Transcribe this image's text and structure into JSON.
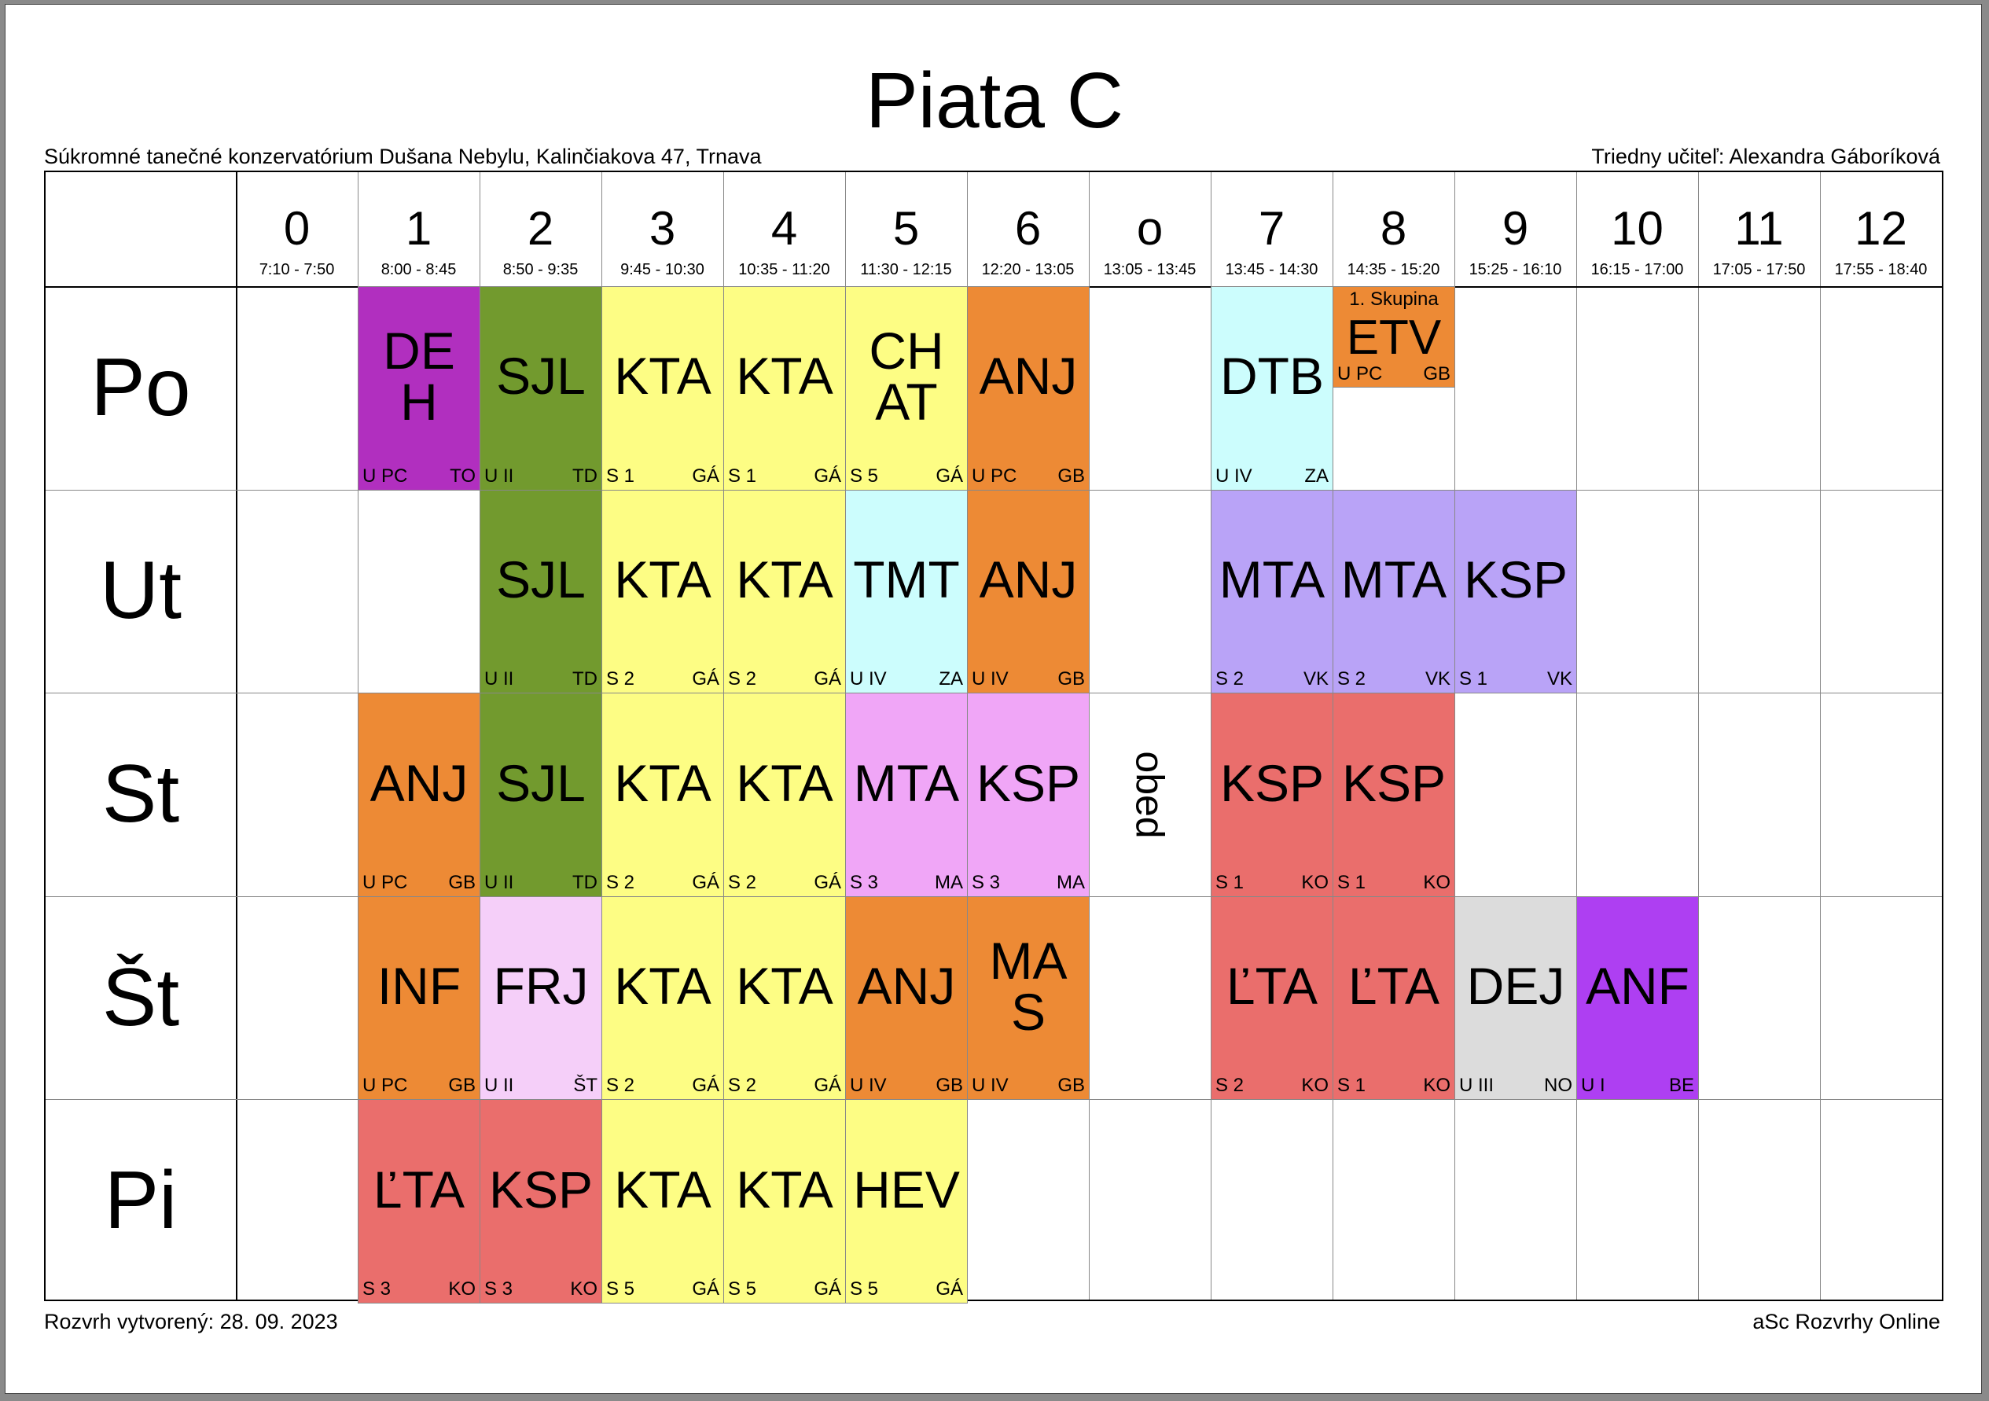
{
  "title": "Piata C",
  "school": "Súkromné tanečné konzervatórium Dušana Nebylu, Kalinčiakova 47, Trnava",
  "class_teacher": "Triedny učiteľ: Alexandra Gáboríková",
  "created": "Rozvrh vytvorený: 28. 09. 2023",
  "brand": "aSc Rozvrhy Online",
  "break_label": "obed",
  "periods": [
    {
      "num": "0",
      "time": "7:10 - 7:50"
    },
    {
      "num": "1",
      "time": "8:00 - 8:45"
    },
    {
      "num": "2",
      "time": "8:50 - 9:35"
    },
    {
      "num": "3",
      "time": "9:45 - 10:30"
    },
    {
      "num": "4",
      "time": "10:35 - 11:20"
    },
    {
      "num": "5",
      "time": "11:30 - 12:15"
    },
    {
      "num": "6",
      "time": "12:20 - 13:05"
    },
    {
      "num": "o",
      "time": "13:05 - 13:45"
    },
    {
      "num": "7",
      "time": "13:45 - 14:30"
    },
    {
      "num": "8",
      "time": "14:35 - 15:20"
    },
    {
      "num": "9",
      "time": "15:25 - 16:10"
    },
    {
      "num": "10",
      "time": "16:15 - 17:00"
    },
    {
      "num": "11",
      "time": "17:05 - 17:50"
    },
    {
      "num": "12",
      "time": "17:55 - 18:40"
    }
  ],
  "days": [
    "Po",
    "Ut",
    "St",
    "Št",
    "Pi"
  ],
  "colors": {
    "purple": "#b12fbf",
    "green": "#729a2e",
    "yellow": "#fdfd84",
    "orange": "#ed8a35",
    "cyan": "#ccfdfd",
    "lavender": "#b9a3f7",
    "pink": "#f0a6f7",
    "red": "#ea6e6c",
    "lightpink": "#f5cff9",
    "gray": "#dcdcdc",
    "violet": "#ae3ff2"
  },
  "lessons": [
    {
      "day": 0,
      "period": 1,
      "subject": "DE\nH",
      "room": "U PC",
      "teacher": "TO",
      "color": "purple"
    },
    {
      "day": 0,
      "period": 2,
      "subject": "SJL",
      "room": "U II",
      "teacher": "TD",
      "color": "green"
    },
    {
      "day": 0,
      "period": 3,
      "subject": "KTA",
      "room": "S 1",
      "teacher": "GÁ",
      "color": "yellow"
    },
    {
      "day": 0,
      "period": 4,
      "subject": "KTA",
      "room": "S 1",
      "teacher": "GÁ",
      "color": "yellow"
    },
    {
      "day": 0,
      "period": 5,
      "subject": "CH\nAT",
      "room": "S 5",
      "teacher": "GÁ",
      "color": "yellow"
    },
    {
      "day": 0,
      "period": 6,
      "subject": "ANJ",
      "room": "U PC",
      "teacher": "GB",
      "color": "orange"
    },
    {
      "day": 0,
      "period": 8,
      "subject": "DTB",
      "room": "U IV",
      "teacher": "ZA",
      "color": "cyan"
    },
    {
      "day": 0,
      "period": 9,
      "subject": "ETV",
      "room": "U PC",
      "teacher": "GB",
      "color": "orange",
      "group": "1. Skupina",
      "half": true
    },
    {
      "day": 1,
      "period": 2,
      "subject": "SJL",
      "room": "U II",
      "teacher": "TD",
      "color": "green"
    },
    {
      "day": 1,
      "period": 3,
      "subject": "KTA",
      "room": "S 2",
      "teacher": "GÁ",
      "color": "yellow"
    },
    {
      "day": 1,
      "period": 4,
      "subject": "KTA",
      "room": "S 2",
      "teacher": "GÁ",
      "color": "yellow"
    },
    {
      "day": 1,
      "period": 5,
      "subject": "TMT",
      "room": "U IV",
      "teacher": "ZA",
      "color": "cyan"
    },
    {
      "day": 1,
      "period": 6,
      "subject": "ANJ",
      "room": "U IV",
      "teacher": "GB",
      "color": "orange"
    },
    {
      "day": 1,
      "period": 8,
      "subject": "MTA",
      "room": "S 2",
      "teacher": "VK",
      "color": "lavender"
    },
    {
      "day": 1,
      "period": 9,
      "subject": "MTA",
      "room": "S 2",
      "teacher": "VK",
      "color": "lavender"
    },
    {
      "day": 1,
      "period": 10,
      "subject": "KSP",
      "room": "S 1",
      "teacher": "VK",
      "color": "lavender"
    },
    {
      "day": 2,
      "period": 1,
      "subject": "ANJ",
      "room": "U PC",
      "teacher": "GB",
      "color": "orange"
    },
    {
      "day": 2,
      "period": 2,
      "subject": "SJL",
      "room": "U II",
      "teacher": "TD",
      "color": "green"
    },
    {
      "day": 2,
      "period": 3,
      "subject": "KTA",
      "room": "S 2",
      "teacher": "GÁ",
      "color": "yellow"
    },
    {
      "day": 2,
      "period": 4,
      "subject": "KTA",
      "room": "S 2",
      "teacher": "GÁ",
      "color": "yellow"
    },
    {
      "day": 2,
      "period": 5,
      "subject": "MTA",
      "room": "S 3",
      "teacher": "MA",
      "color": "pink"
    },
    {
      "day": 2,
      "period": 6,
      "subject": "KSP",
      "room": "S 3",
      "teacher": "MA",
      "color": "pink"
    },
    {
      "day": 2,
      "period": 8,
      "subject": "KSP",
      "room": "S 1",
      "teacher": "KO",
      "color": "red"
    },
    {
      "day": 2,
      "period": 9,
      "subject": "KSP",
      "room": "S 1",
      "teacher": "KO",
      "color": "red"
    },
    {
      "day": 3,
      "period": 1,
      "subject": "INF",
      "room": "U PC",
      "teacher": "GB",
      "color": "orange"
    },
    {
      "day": 3,
      "period": 2,
      "subject": "FRJ",
      "room": "U II",
      "teacher": "ŠT",
      "color": "lightpink"
    },
    {
      "day": 3,
      "period": 3,
      "subject": "KTA",
      "room": "S 2",
      "teacher": "GÁ",
      "color": "yellow"
    },
    {
      "day": 3,
      "period": 4,
      "subject": "KTA",
      "room": "S 2",
      "teacher": "GÁ",
      "color": "yellow"
    },
    {
      "day": 3,
      "period": 5,
      "subject": "ANJ",
      "room": "U IV",
      "teacher": "GB",
      "color": "orange"
    },
    {
      "day": 3,
      "period": 6,
      "subject": "MA\nS",
      "room": "U IV",
      "teacher": "GB",
      "color": "orange"
    },
    {
      "day": 3,
      "period": 8,
      "subject": "ĽTA",
      "room": "S 2",
      "teacher": "KO",
      "color": "red"
    },
    {
      "day": 3,
      "period": 9,
      "subject": "ĽTA",
      "room": "S 1",
      "teacher": "KO",
      "color": "red"
    },
    {
      "day": 3,
      "period": 10,
      "subject": "DEJ",
      "room": "U III",
      "teacher": "NO",
      "color": "gray"
    },
    {
      "day": 3,
      "period": 11,
      "subject": "ANF",
      "room": "U I",
      "teacher": "BE",
      "color": "violet"
    },
    {
      "day": 4,
      "period": 1,
      "subject": "ĽTA",
      "room": "S 3",
      "teacher": "KO",
      "color": "red"
    },
    {
      "day": 4,
      "period": 2,
      "subject": "KSP",
      "room": "S 3",
      "teacher": "KO",
      "color": "red"
    },
    {
      "day": 4,
      "period": 3,
      "subject": "KTA",
      "room": "S 5",
      "teacher": "GÁ",
      "color": "yellow"
    },
    {
      "day": 4,
      "period": 4,
      "subject": "KTA",
      "room": "S 5",
      "teacher": "GÁ",
      "color": "yellow"
    },
    {
      "day": 4,
      "period": 5,
      "subject": "HEV",
      "room": "S 5",
      "teacher": "GÁ",
      "color": "yellow"
    }
  ]
}
